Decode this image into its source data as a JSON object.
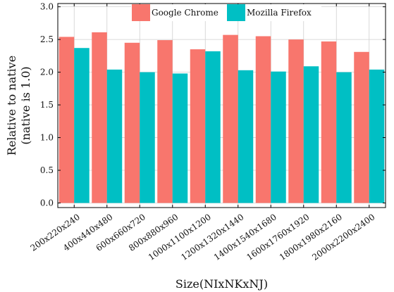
{
  "chart_data": {
    "type": "bar",
    "title": "",
    "xlabel": "Size(NIxNKxNJ)",
    "ylabel_lines": [
      "Relative to native",
      "(native is 1.0)"
    ],
    "categories": [
      "200x220x240",
      "400x440x480",
      "600x660x720",
      "800x880x960",
      "1000x1100x1200",
      "1200x1320x1440",
      "1400x1540x1680",
      "1600x1760x1920",
      "1800x1980x2160",
      "2000x2200x2400"
    ],
    "series": [
      {
        "name": "Google Chrome",
        "color": "#f8766d",
        "values": [
          2.54,
          2.61,
          2.45,
          2.49,
          2.35,
          2.57,
          2.55,
          2.5,
          2.47,
          2.31
        ]
      },
      {
        "name": "Mozilla Firefox",
        "color": "#00bfc4",
        "values": [
          2.37,
          2.04,
          2.0,
          1.98,
          2.32,
          2.03,
          2.01,
          2.09,
          2.0,
          2.04
        ]
      }
    ],
    "ylim": [
      -0.07,
      3.05
    ],
    "yticks": [
      0.0,
      0.5,
      1.0,
      1.5,
      2.0,
      2.5,
      3.0
    ],
    "ytick_labels": [
      "0.0",
      "0.5",
      "1.0",
      "1.5",
      "2.0",
      "2.5",
      "3.0"
    ],
    "grid": true,
    "legend_position": "top-center"
  }
}
